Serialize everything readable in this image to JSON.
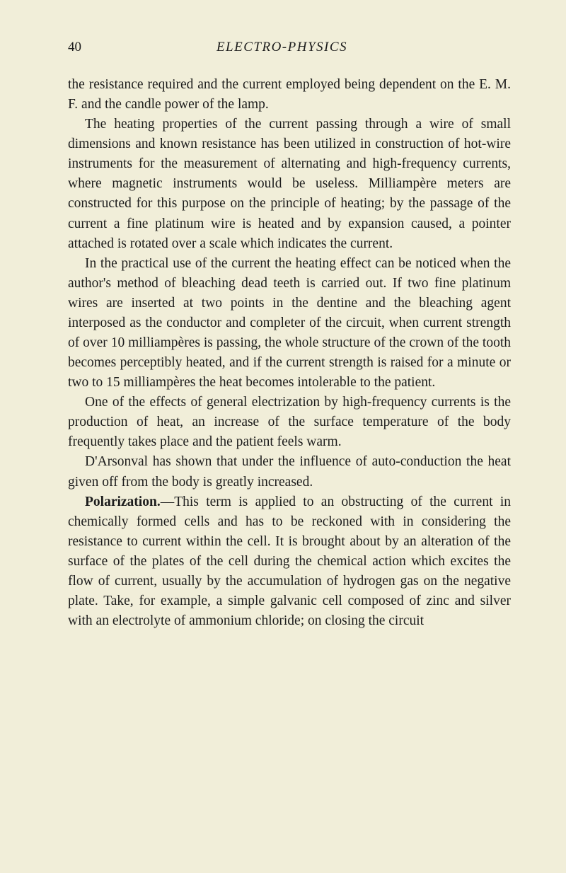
{
  "page_number": "40",
  "chapter_title": "ELECTRO-PHYSICS",
  "paragraphs": {
    "p1": "the resistance required and the current employed being dependent on the E. M. F. and the candle power of the lamp.",
    "p2": "The heating properties of the current passing through a wire of small dimensions and known resistance has been utilized in construction of hot-wire instruments for the measurement of alternating and high-frequency currents, where magnetic instruments would be useless. Milliampère meters are constructed for this purpose on the principle of heating; by the passage of the current a fine platinum wire is heated and by expansion caused, a pointer attached is rotated over a scale which indicates the current.",
    "p3": "In the practical use of the current the heating effect can be noticed when the author's method of bleaching dead teeth is carried out. If two fine platinum wires are inserted at two points in the dentine and the bleaching agent interposed as the conductor and completer of the circuit, when current strength of over 10 milliampères is passing, the whole structure of the crown of the tooth becomes perceptibly heated, and if the current strength is raised for a minute or two to 15 milliampères the heat becomes intolerable to the patient.",
    "p4": "One of the effects of general electrization by high-frequency currents is the production of heat, an increase of the surface temperature of the body frequently takes place and the patient feels warm.",
    "p5": "D'Arsonval has shown that under the influence of auto-conduction the heat given off from the body is greatly increased.",
    "p6_heading": "Polarization.",
    "p6_body": "—This term is applied to an obstructing of the current in chemically formed cells and has to be reckoned with in considering the resistance to current within the cell. It is brought about by an alteration of the surface of the plates of the cell during the chemical action which excites the flow of current, usually by the accumulation of hydrogen gas on the negative plate. Take, for example, a simple galvanic cell composed of zinc and silver with an electrolyte of ammonium chloride; on closing the circuit"
  },
  "colors": {
    "background": "#f1eed9",
    "text": "#1c1c1c"
  },
  "typography": {
    "body_fontsize": 19.5,
    "header_fontsize": 19,
    "line_height": 1.44,
    "font_family": "Georgia serif"
  }
}
